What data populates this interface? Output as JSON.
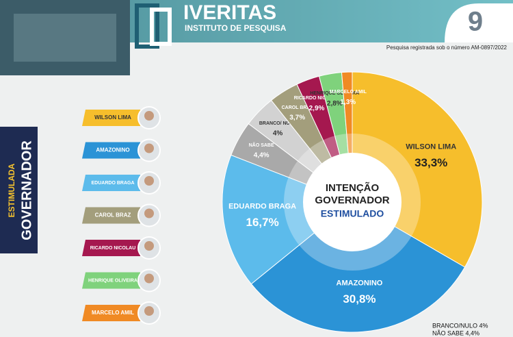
{
  "header": {
    "brand": "IVERITAS",
    "subtitle": "INSTITUTO DE PESQUISA",
    "number": "9",
    "registration": "Pesquisa registrada sob o número AM-0897/2022"
  },
  "side": {
    "top": "ESTIMULADA",
    "bottom": "GOVERNADOR"
  },
  "chart_data": {
    "type": "donut",
    "title": "INTENÇÃO GOVERNADOR",
    "subtitle": "ESTIMULADO",
    "categories": [
      "WILSON LIMA",
      "AMAZONINO",
      "EDUARDO BRAGA",
      "NÃO SABE",
      "BRANCO/ NULO",
      "CAROL BRAZ",
      "RICARDO NICOLAU",
      "HENRIQUE OLIVEIRA",
      "MARCELO AMIL"
    ],
    "values": [
      33.3,
      30.8,
      16.7,
      4.4,
      4,
      3.7,
      2.9,
      2.8,
      1.3
    ],
    "value_labels": [
      "33,3%",
      "30,8%",
      "16,7%",
      "4,4%",
      "4%",
      "3,7%",
      "2,9%",
      "2,8%",
      "1,3%"
    ],
    "colors": [
      "#f6be2c",
      "#2b93d6",
      "#5cbbeb",
      "#a9a9a9",
      "#d2d2d2",
      "#a39e7c",
      "#a5184f",
      "#7fd27c",
      "#f08a24"
    ],
    "annotations": [
      "BRANCO/NULO 4%",
      "NÃO SABE 4,4%"
    ]
  }
}
